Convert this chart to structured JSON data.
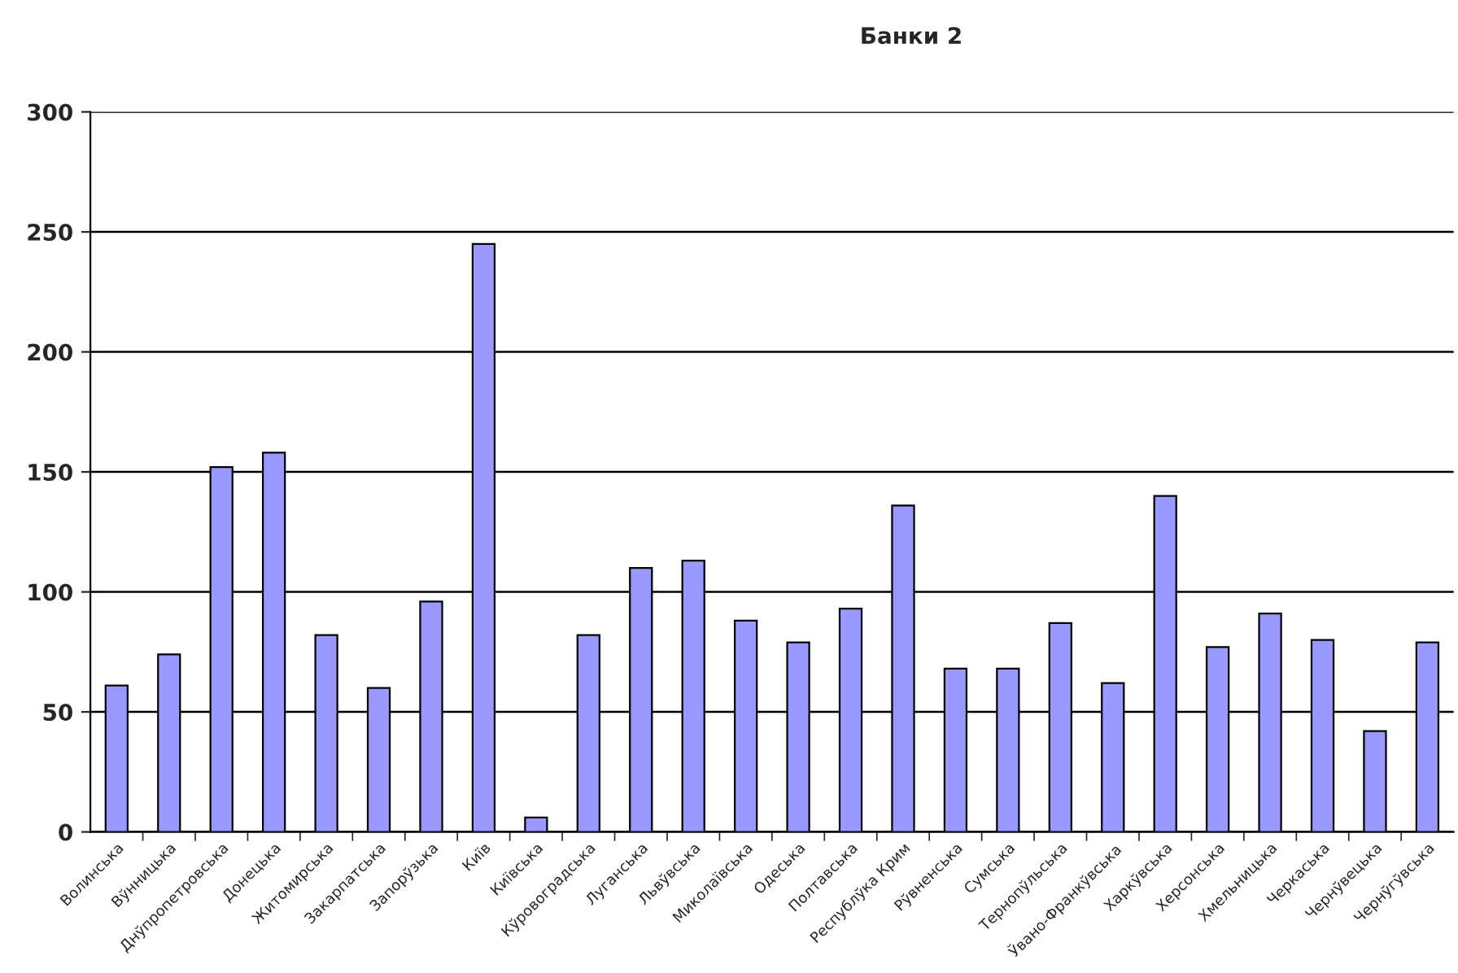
{
  "chart_data": {
    "type": "bar",
    "title": "Банки 2",
    "categories": [
      "Волинська",
      "Вўнницька",
      "Днўпропетровська",
      "Донецька",
      "Житомирська",
      "Закарпатська",
      "Запорўзька",
      "Київ",
      "Київська",
      "Кўровоградська",
      "Луганська",
      "Львўвська",
      "Миколаївська",
      "Одеська",
      "Полтавська",
      "Республўка Крим",
      "Рўвненська",
      "Сумська",
      "Тернопўльська",
      "Ўвано-Франкўвська",
      "Харкўвська",
      "Херсонська",
      "Хмельницька",
      "Черкаська",
      "Чернўвецька",
      "Чернўгўвська"
    ],
    "values": [
      61,
      74,
      152,
      158,
      82,
      60,
      96,
      245,
      6,
      82,
      110,
      113,
      88,
      79,
      93,
      136,
      68,
      68,
      87,
      62,
      140,
      77,
      91,
      80,
      42,
      79
    ],
    "color": "#9999ff",
    "ylim": [
      0,
      300
    ],
    "yticks": [
      0,
      50,
      100,
      150,
      200,
      250,
      300
    ],
    "grid": "y"
  }
}
